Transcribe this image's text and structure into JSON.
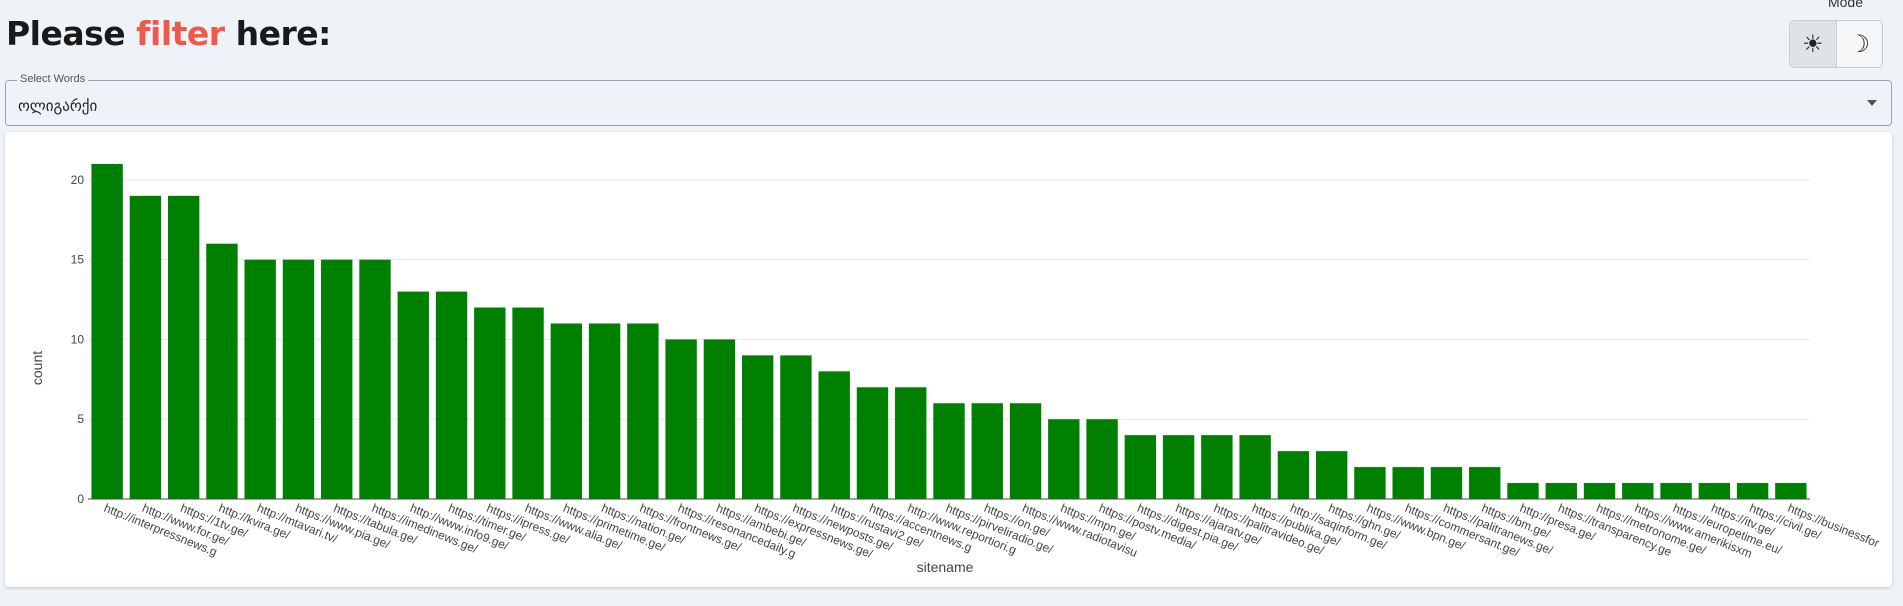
{
  "header": {
    "title_pre": "Please ",
    "title_accent": "filter",
    "title_post": " here:",
    "accent_color": "#f0584c"
  },
  "mode": {
    "label": "Mode",
    "light_icon": "sun-icon",
    "dark_icon": "moon-icon",
    "selected": "light"
  },
  "select": {
    "legend": "Select Words",
    "value": "ოლიგარქი"
  },
  "chart_data": {
    "type": "bar",
    "xlabel": "sitename",
    "ylabel": "count",
    "ylim": [
      0,
      23
    ],
    "yticks": [
      0,
      5,
      10,
      15,
      20
    ],
    "bar_color": "#008000",
    "grid": true,
    "categories": [
      "http://interpressnews.g",
      "http://www.for.ge/",
      "https://1tv.ge/",
      "http://kvira.ge/",
      "http://mtavari.tv/",
      "https://www.pia.ge/",
      "https://tabula.ge/",
      "https://imedinews.ge/",
      "http://www.info9.ge/",
      "https://timer.ge/",
      "https://ipress.ge/",
      "https://www.alia.ge/",
      "https://primetime.ge/",
      "https://nation.ge/",
      "https://frontnews.ge/",
      "https://resonancedaily.g",
      "https://ambebi.ge/",
      "https://expressnews.ge/",
      "https://newposts.ge/",
      "https://rustavi2.ge/",
      "https://accentnews.g",
      "http://www.reportiori.g",
      "https://pirveliradio.ge/",
      "https://on.ge/",
      "https://www.radiotavisu",
      "https://mpn.ge/",
      "https://postv.media/",
      "https://digest.pia.ge/",
      "https://ajaratv.ge/",
      "https://palitravideo.ge/",
      "https://publika.ge/",
      "http://saqinform.ge/",
      "https://ghn.ge/",
      "https://www.bpn.ge/",
      "https://commersant.ge/",
      "https://palitranews.ge/",
      "https://bm.ge/",
      "http://presa.ge/",
      "https://transparency.ge",
      "https://metronome.ge/",
      "https://www.amerikisxm",
      "https://europetime.eu/",
      "https://itv.ge/",
      "https://civil.ge/",
      "https://businessfor"
    ],
    "values": [
      21,
      19,
      19,
      16,
      15,
      15,
      15,
      15,
      13,
      13,
      12,
      12,
      11,
      11,
      11,
      10,
      10,
      9,
      9,
      8,
      7,
      7,
      6,
      6,
      6,
      5,
      5,
      4,
      4,
      4,
      4,
      3,
      3,
      2,
      2,
      2,
      2,
      1,
      1,
      1,
      1,
      1,
      1,
      1,
      1
    ]
  }
}
